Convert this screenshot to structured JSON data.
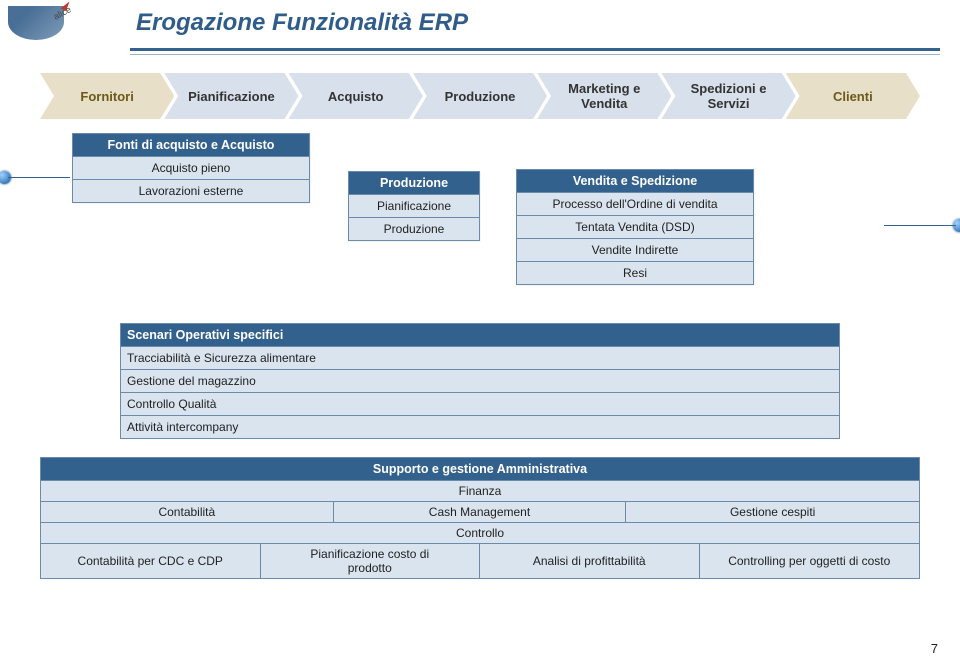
{
  "header": {
    "logo_label": "alice",
    "title": "Erogazione Funzionalità ERP"
  },
  "chain": [
    {
      "label": "Fornitori",
      "end": true
    },
    {
      "label": "Pianificazione",
      "end": false
    },
    {
      "label": "Acquisto",
      "end": false
    },
    {
      "label": "Produzione",
      "end": false
    },
    {
      "label": "Marketing e\nVendita",
      "end": false
    },
    {
      "label": "Spedizioni e\nServizi",
      "end": false
    },
    {
      "label": "Clienti",
      "end": true
    }
  ],
  "purchasing": {
    "head": "Fonti di acquisto e Acquisto",
    "rows": [
      "Acquisto pieno",
      "Lavorazioni esterne"
    ]
  },
  "production": {
    "head": "Produzione",
    "rows": [
      "Pianificazione",
      "Produzione"
    ]
  },
  "sales": {
    "head": "Vendita e Spedizione",
    "rows": [
      "Processo dell'Ordine di vendita",
      "Tentata Vendita (DSD)",
      "Vendite Indirette",
      "Resi"
    ]
  },
  "scenarios": {
    "head": "Scenari Operativi specifici",
    "rows": [
      "Tracciabilità e Sicurezza alimentare",
      "Gestione del magazzino",
      "Controllo Qualità",
      "Attività intercompany"
    ]
  },
  "support": {
    "head": "Supporto e gestione Amministrativa",
    "sub1": "Finanza",
    "row1": [
      "Contabilità",
      "Cash Management",
      "Gestione cespiti"
    ],
    "ctrl": "Controllo",
    "row2": [
      "Contabilità per CDC e CDP",
      "Pianificazione costo di\nprodotto",
      "Analisi di profittabilità",
      "Controlling per oggetti di costo"
    ]
  },
  "page_number": "7",
  "colors": {
    "title": "#2f5c8a",
    "band_head": "#33618e",
    "band_cell": "#dae4ef",
    "chevron": "#d8e0ec",
    "chevron_end": "#e8dfc8",
    "border": "#6c8bab"
  }
}
